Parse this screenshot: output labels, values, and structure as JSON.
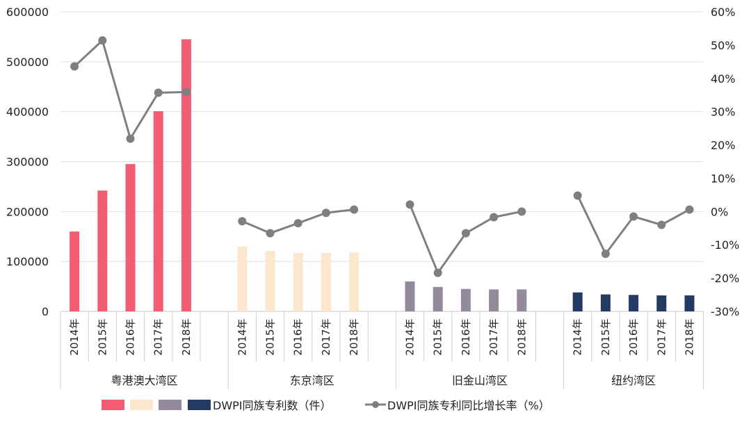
{
  "chart_data": {
    "type": "bar",
    "title": "",
    "groups": [
      "粤港澳大湾区",
      "东京湾区",
      "旧金山湾区",
      "纽约湾区"
    ],
    "categories": [
      "2014年",
      "2015年",
      "2016年",
      "2017年",
      "2018年"
    ],
    "bar_colors": [
      "#f25d73",
      "#fae7cd",
      "#938b9c",
      "#233a62"
    ],
    "line_color": "#7f7f7f",
    "bar_series": {
      "name": "DWPI同族专利数（件）",
      "values": [
        [
          160000,
          242000,
          295000,
          401000,
          545000
        ],
        [
          130000,
          121000,
          117000,
          117000,
          118000
        ],
        [
          60000,
          49000,
          45000,
          44000,
          44000
        ],
        [
          38000,
          34000,
          33000,
          32000,
          32000
        ]
      ]
    },
    "line_series": {
      "name": "DWPI同族专利同比增长率（%）",
      "values": [
        [
          43.6,
          51.4,
          21.9,
          35.7,
          35.9
        ],
        [
          -2.9,
          -6.5,
          -3.5,
          -0.4,
          0.6
        ],
        [
          2.1,
          -18.4,
          -6.5,
          -1.7,
          0.0
        ],
        [
          4.8,
          -12.7,
          -1.5,
          -4.0,
          0.6
        ]
      ]
    },
    "y_left": {
      "ylim": [
        0,
        600000
      ],
      "ticks": [
        "0",
        "100000",
        "200000",
        "300000",
        "400000",
        "500000",
        "600000"
      ]
    },
    "y_right": {
      "ylim": [
        -30,
        60
      ],
      "ticks": [
        "-30%",
        "-20%",
        "-10%",
        "0%",
        "10%",
        "20%",
        "30%",
        "40%",
        "50%",
        "60%"
      ]
    },
    "grid": true,
    "legend_position": "bottom"
  }
}
